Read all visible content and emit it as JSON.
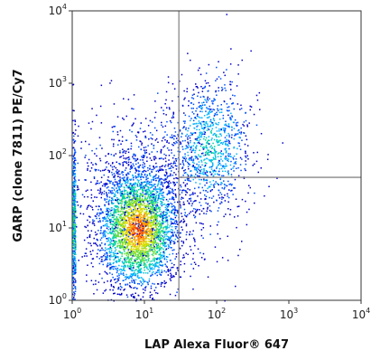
{
  "chart_data": {
    "type": "scatter",
    "subtype": "flow-cytometry density dot plot",
    "xlabel": "LAP  Alexa Fluor® 647",
    "ylabel": "GARP (clone 7811) PE/Cy7",
    "x_scale": "log",
    "y_scale": "log",
    "xlim": [
      1,
      10000
    ],
    "ylim": [
      1,
      10000
    ],
    "x_ticks": [
      {
        "base": "10",
        "exp": "0"
      },
      {
        "base": "10",
        "exp": "1"
      },
      {
        "base": "10",
        "exp": "2"
      },
      {
        "base": "10",
        "exp": "3"
      },
      {
        "base": "10",
        "exp": "4"
      }
    ],
    "y_ticks": [
      {
        "base": "10",
        "exp": "0"
      },
      {
        "base": "10",
        "exp": "1"
      },
      {
        "base": "10",
        "exp": "2"
      },
      {
        "base": "10",
        "exp": "3"
      },
      {
        "base": "10",
        "exp": "4"
      }
    ],
    "grid": false,
    "quadrant_gates": {
      "vertical_x": 30,
      "horizontal_y": 50,
      "horizontal_from_x": 30,
      "horizontal_to_x": 10000
    },
    "density_colors": [
      "#0000c8",
      "#0050ff",
      "#00b4ff",
      "#00d2a0",
      "#64dc3c",
      "#dcdc00",
      "#ff8c00",
      "#e61e00"
    ],
    "populations": [
      {
        "name_hint": "main",
        "center": [
          8,
          10
        ],
        "log_spread": [
          0.28,
          0.42
        ],
        "count": 3200,
        "peak_level": 7
      },
      {
        "name_hint": "upper-right",
        "center": [
          80,
          140
        ],
        "log_spread": [
          0.28,
          0.45
        ],
        "count": 900,
        "peak_level": 3
      },
      {
        "name_hint": "left-edge",
        "center": [
          1,
          12
        ],
        "log_spread": [
          0.0,
          0.6
        ],
        "count": 450,
        "peak_level": 4
      },
      {
        "name_hint": "diffuse",
        "center": [
          12,
          40
        ],
        "log_spread": [
          0.55,
          0.55
        ],
        "count": 900,
        "peak_level": 1
      }
    ]
  }
}
